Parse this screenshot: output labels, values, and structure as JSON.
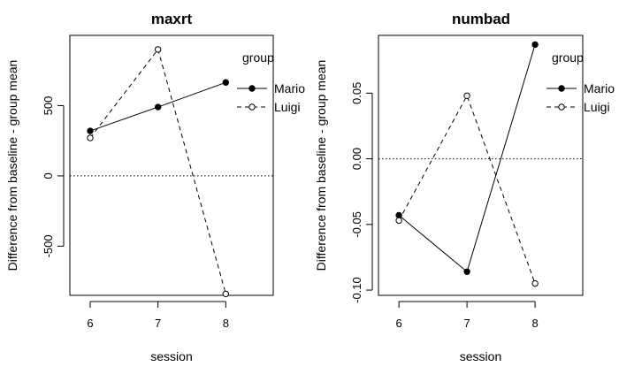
{
  "chart_data": [
    {
      "type": "line",
      "title": "maxrt",
      "xlabel": "session",
      "ylabel": "Difference from baseline - group mean",
      "x": [
        6,
        7,
        8
      ],
      "xlim": [
        5.7,
        8.7
      ],
      "ylim": [
        -850,
        1000
      ],
      "xticks": [
        "6",
        "7",
        "8"
      ],
      "yticks": [
        -500,
        0,
        500
      ],
      "ytick_labels": [
        "-500",
        "0",
        "500"
      ],
      "reference_line": 0,
      "legend_title": "group",
      "legend_position": "top-right",
      "series": [
        {
          "name": "Mario",
          "values": [
            320,
            490,
            665
          ],
          "line": "solid",
          "marker": "filled"
        },
        {
          "name": "Luigi",
          "values": [
            270,
            900,
            -840
          ],
          "line": "dashed",
          "marker": "open"
        }
      ]
    },
    {
      "type": "line",
      "title": "numbad",
      "xlabel": "session",
      "ylabel": "Difference from baseline - group mean",
      "x": [
        6,
        7,
        8
      ],
      "xlim": [
        5.7,
        8.7
      ],
      "ylim": [
        -0.104,
        0.094
      ],
      "xticks": [
        "6",
        "7",
        "8"
      ],
      "yticks": [
        -0.1,
        -0.05,
        0,
        0.05
      ],
      "ytick_labels": [
        "-0.10",
        "-0.05",
        "0.00",
        "0.05"
      ],
      "reference_line": 0,
      "legend_title": "group",
      "legend_position": "top-right",
      "series": [
        {
          "name": "Mario",
          "values": [
            -0.043,
            -0.086,
            0.087
          ],
          "line": "solid",
          "marker": "filled"
        },
        {
          "name": "Luigi",
          "values": [
            -0.047,
            0.048,
            -0.095
          ],
          "line": "dashed",
          "marker": "open"
        }
      ]
    }
  ]
}
